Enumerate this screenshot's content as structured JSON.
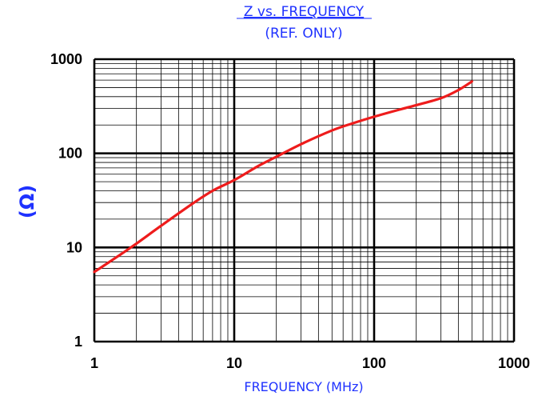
{
  "chart_data": {
    "type": "line",
    "title": "Z vs. FREQUENCY",
    "subtitle": "(REF. ONLY)",
    "xlabel": "FREQUENCY (MHz)",
    "ylabel": "(Ω)",
    "x_scale": "log",
    "y_scale": "log",
    "xlim": [
      1,
      1000
    ],
    "ylim": [
      1,
      1000
    ],
    "x_ticks": [
      1,
      10,
      100,
      1000
    ],
    "y_ticks": [
      1,
      10,
      100,
      1000
    ],
    "x_tick_labels": [
      "1",
      "10",
      "100",
      "1000"
    ],
    "y_tick_labels": [
      "1",
      "10",
      "100",
      "1000"
    ],
    "grid": true,
    "series": [
      {
        "color": "#ee1c1c",
        "x": [
          1,
          1.5,
          2,
          3,
          5,
          7,
          10,
          15,
          20,
          30,
          50,
          70,
          100,
          150,
          200,
          300,
          400,
          500
        ],
        "y": [
          5.5,
          8.2,
          11,
          17,
          29,
          40,
          52,
          74,
          92,
          125,
          175,
          208,
          245,
          290,
          325,
          385,
          470,
          580
        ]
      }
    ]
  },
  "colors": {
    "title": "#1f32ff",
    "axis_label": "#1f32ff",
    "tick_label": "#000000",
    "grid": "#000000",
    "curve": "#ee1c1c"
  }
}
